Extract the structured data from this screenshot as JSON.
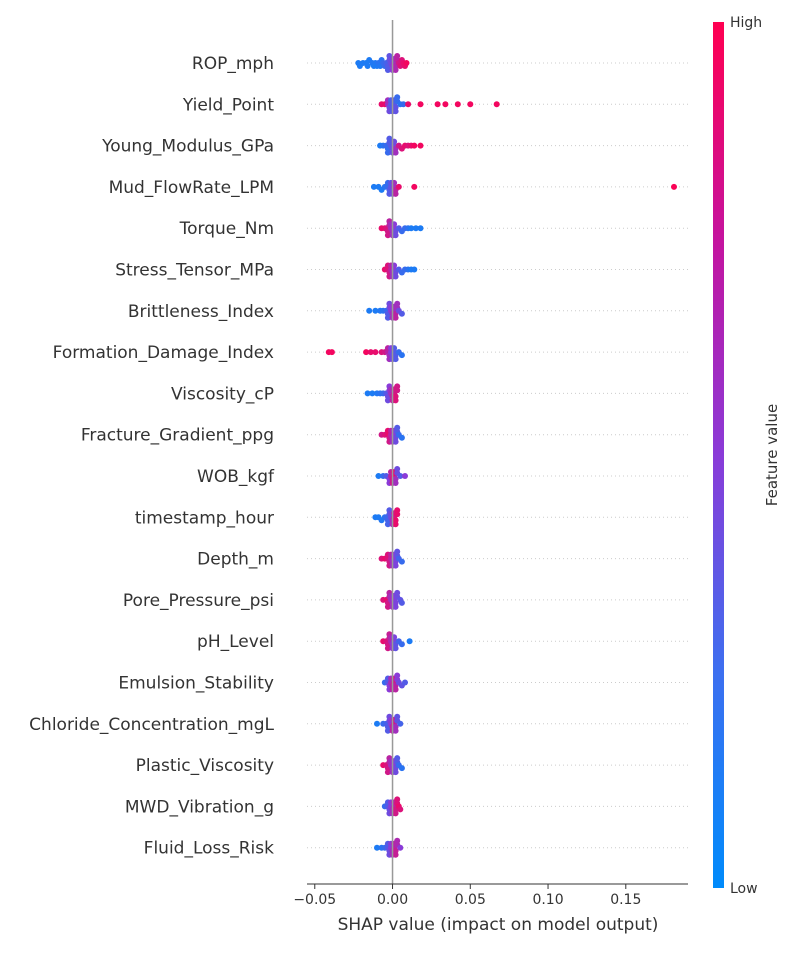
{
  "chart_data": {
    "type": "scatter",
    "xlabel": "SHAP value (impact on model output)",
    "xlim": [
      -0.055,
      0.19
    ],
    "xticks": [
      -0.05,
      0.0,
      0.05,
      0.1,
      0.15
    ],
    "xtick_labels": [
      "−0.05",
      "0.00",
      "0.05",
      "0.10",
      "0.15"
    ],
    "colorbar": {
      "label": "Feature value",
      "high_label": "High",
      "low_label": "Low",
      "low_color": "#008bfb",
      "high_color": "#ff0051"
    },
    "features": [
      {
        "name": "ROP_mph",
        "points": [
          [
            -0.022,
            0.1
          ],
          [
            -0.021,
            0.1
          ],
          [
            -0.019,
            0.1
          ],
          [
            -0.017,
            0.1
          ],
          [
            -0.016,
            0.1
          ],
          [
            -0.015,
            0.1
          ],
          [
            -0.013,
            0.12
          ],
          [
            -0.012,
            0.1
          ],
          [
            -0.011,
            0.12
          ],
          [
            -0.01,
            0.1
          ],
          [
            -0.009,
            0.15
          ],
          [
            -0.008,
            0.12
          ],
          [
            -0.007,
            0.15
          ],
          [
            -0.006,
            0.2
          ],
          [
            -0.005,
            0.2
          ],
          [
            -0.004,
            0.25
          ],
          [
            -0.003,
            0.3
          ],
          [
            -0.002,
            0.35
          ],
          [
            -0.001,
            0.4
          ],
          [
            0.0,
            0.5
          ],
          [
            0.001,
            0.6
          ],
          [
            0.002,
            0.65
          ],
          [
            0.003,
            0.7
          ],
          [
            0.004,
            0.8
          ],
          [
            0.005,
            0.85
          ],
          [
            0.006,
            0.85
          ],
          [
            0.007,
            0.9
          ],
          [
            0.008,
            0.9
          ],
          [
            0.009,
            0.95
          ]
        ]
      },
      {
        "name": "Yield_Point",
        "points": [
          [
            -0.007,
            0.9
          ],
          [
            -0.005,
            0.9
          ],
          [
            -0.003,
            0.6
          ],
          [
            -0.002,
            0.4
          ],
          [
            -0.001,
            0.3
          ],
          [
            0.0,
            0.3
          ],
          [
            0.001,
            0.3
          ],
          [
            0.002,
            0.35
          ],
          [
            0.003,
            0.2
          ],
          [
            0.005,
            0.15
          ],
          [
            0.007,
            0.2
          ],
          [
            0.01,
            0.9
          ],
          [
            0.018,
            0.95
          ],
          [
            0.029,
            0.95
          ],
          [
            0.034,
            0.95
          ],
          [
            0.042,
            0.95
          ],
          [
            0.05,
            0.95
          ],
          [
            0.067,
            0.95
          ]
        ]
      },
      {
        "name": "Young_Modulus_GPa",
        "points": [
          [
            -0.008,
            0.1
          ],
          [
            -0.006,
            0.15
          ],
          [
            -0.004,
            0.2
          ],
          [
            -0.003,
            0.2
          ],
          [
            -0.002,
            0.3
          ],
          [
            -0.001,
            0.3
          ],
          [
            0.0,
            0.35
          ],
          [
            0.001,
            0.4
          ],
          [
            0.002,
            0.6
          ],
          [
            0.004,
            0.8
          ],
          [
            0.006,
            0.85
          ],
          [
            0.008,
            0.9
          ],
          [
            0.01,
            0.85
          ],
          [
            0.012,
            0.9
          ],
          [
            0.014,
            0.95
          ],
          [
            0.018,
            0.95
          ]
        ]
      },
      {
        "name": "Mud_FlowRate_LPM",
        "points": [
          [
            -0.012,
            0.1
          ],
          [
            -0.009,
            0.1
          ],
          [
            -0.007,
            0.1
          ],
          [
            -0.005,
            0.15
          ],
          [
            -0.003,
            0.2
          ],
          [
            -0.002,
            0.3
          ],
          [
            -0.001,
            0.35
          ],
          [
            0.0,
            0.4
          ],
          [
            0.001,
            0.6
          ],
          [
            0.002,
            0.7
          ],
          [
            0.004,
            0.9
          ],
          [
            0.014,
            0.95
          ],
          [
            0.181,
            0.98
          ]
        ]
      },
      {
        "name": "Torque_Nm",
        "points": [
          [
            -0.007,
            0.9
          ],
          [
            -0.005,
            0.9
          ],
          [
            -0.004,
            0.85
          ],
          [
            -0.003,
            0.8
          ],
          [
            -0.002,
            0.7
          ],
          [
            -0.001,
            0.6
          ],
          [
            0.0,
            0.6
          ],
          [
            0.001,
            0.5
          ],
          [
            0.002,
            0.4
          ],
          [
            0.004,
            0.3
          ],
          [
            0.006,
            0.2
          ],
          [
            0.008,
            0.2
          ],
          [
            0.01,
            0.15
          ],
          [
            0.012,
            0.1
          ],
          [
            0.015,
            0.1
          ],
          [
            0.018,
            0.1
          ]
        ]
      },
      {
        "name": "Stress_Tensor_MPa",
        "points": [
          [
            -0.005,
            0.9
          ],
          [
            -0.003,
            0.85
          ],
          [
            -0.002,
            0.8
          ],
          [
            -0.001,
            0.7
          ],
          [
            0.0,
            0.6
          ],
          [
            0.001,
            0.5
          ],
          [
            0.002,
            0.4
          ],
          [
            0.004,
            0.3
          ],
          [
            0.006,
            0.2
          ],
          [
            0.008,
            0.2
          ],
          [
            0.01,
            0.15
          ],
          [
            0.012,
            0.1
          ],
          [
            0.014,
            0.1
          ]
        ]
      },
      {
        "name": "Brittleness_Index",
        "points": [
          [
            -0.015,
            0.1
          ],
          [
            -0.011,
            0.1
          ],
          [
            -0.008,
            0.12
          ],
          [
            -0.006,
            0.15
          ],
          [
            -0.004,
            0.2
          ],
          [
            -0.003,
            0.3
          ],
          [
            -0.002,
            0.4
          ],
          [
            -0.001,
            0.5
          ],
          [
            0.0,
            0.6
          ],
          [
            0.001,
            0.6
          ],
          [
            0.002,
            0.7
          ],
          [
            0.003,
            0.6
          ],
          [
            0.004,
            0.4
          ],
          [
            0.006,
            0.3
          ]
        ]
      },
      {
        "name": "Formation_Damage_Index",
        "points": [
          [
            -0.041,
            0.95
          ],
          [
            -0.039,
            0.95
          ],
          [
            -0.017,
            0.95
          ],
          [
            -0.014,
            0.9
          ],
          [
            -0.011,
            0.9
          ],
          [
            -0.007,
            0.85
          ],
          [
            -0.005,
            0.8
          ],
          [
            -0.003,
            0.7
          ],
          [
            -0.002,
            0.6
          ],
          [
            -0.001,
            0.5
          ],
          [
            0.0,
            0.4
          ],
          [
            0.001,
            0.3
          ],
          [
            0.002,
            0.3
          ],
          [
            0.004,
            0.2
          ],
          [
            0.006,
            0.15
          ]
        ]
      },
      {
        "name": "Viscosity_cP",
        "points": [
          [
            -0.016,
            0.1
          ],
          [
            -0.013,
            0.1
          ],
          [
            -0.01,
            0.12
          ],
          [
            -0.008,
            0.15
          ],
          [
            -0.006,
            0.2
          ],
          [
            -0.004,
            0.3
          ],
          [
            -0.003,
            0.4
          ],
          [
            -0.002,
            0.5
          ],
          [
            -0.001,
            0.6
          ],
          [
            0.0,
            0.7
          ],
          [
            0.001,
            0.8
          ],
          [
            0.002,
            0.85
          ],
          [
            0.003,
            0.8
          ]
        ]
      },
      {
        "name": "Fracture_Gradient_ppg",
        "points": [
          [
            -0.007,
            0.8
          ],
          [
            -0.005,
            0.85
          ],
          [
            -0.003,
            0.9
          ],
          [
            -0.002,
            0.8
          ],
          [
            -0.001,
            0.7
          ],
          [
            0.0,
            0.6
          ],
          [
            0.001,
            0.5
          ],
          [
            0.002,
            0.4
          ],
          [
            0.003,
            0.3
          ],
          [
            0.004,
            0.2
          ],
          [
            0.006,
            0.15
          ]
        ]
      },
      {
        "name": "WOB_kgf",
        "points": [
          [
            -0.009,
            0.1
          ],
          [
            -0.006,
            0.2
          ],
          [
            -0.004,
            0.3
          ],
          [
            -0.002,
            0.5
          ],
          [
            -0.001,
            0.7
          ],
          [
            0.0,
            0.8
          ],
          [
            0.001,
            0.9
          ],
          [
            0.002,
            0.6
          ],
          [
            0.003,
            0.4
          ],
          [
            0.005,
            0.3
          ],
          [
            0.008,
            0.5
          ]
        ]
      },
      {
        "name": "timestamp_hour",
        "points": [
          [
            -0.011,
            0.1
          ],
          [
            -0.009,
            0.1
          ],
          [
            -0.007,
            0.12
          ],
          [
            -0.005,
            0.15
          ],
          [
            -0.004,
            0.2
          ],
          [
            -0.003,
            0.25
          ],
          [
            -0.002,
            0.3
          ],
          [
            -0.001,
            0.4
          ],
          [
            0.0,
            0.6
          ],
          [
            0.001,
            0.8
          ],
          [
            0.002,
            0.9
          ],
          [
            0.003,
            0.9
          ]
        ]
      },
      {
        "name": "Depth_m",
        "points": [
          [
            -0.007,
            0.85
          ],
          [
            -0.005,
            0.9
          ],
          [
            -0.003,
            0.85
          ],
          [
            -0.002,
            0.8
          ],
          [
            -0.001,
            0.7
          ],
          [
            0.0,
            0.6
          ],
          [
            0.001,
            0.5
          ],
          [
            0.002,
            0.45
          ],
          [
            0.003,
            0.35
          ],
          [
            0.004,
            0.25
          ],
          [
            0.006,
            0.2
          ]
        ]
      },
      {
        "name": "Pore_Pressure_psi",
        "points": [
          [
            -0.006,
            0.85
          ],
          [
            -0.004,
            0.9
          ],
          [
            -0.003,
            0.8
          ],
          [
            -0.002,
            0.7
          ],
          [
            -0.001,
            0.6
          ],
          [
            0.0,
            0.6
          ],
          [
            0.001,
            0.5
          ],
          [
            0.002,
            0.45
          ],
          [
            0.003,
            0.4
          ],
          [
            0.005,
            0.35
          ],
          [
            0.006,
            0.3
          ]
        ]
      },
      {
        "name": "pH_Level",
        "points": [
          [
            -0.006,
            0.9
          ],
          [
            -0.004,
            0.85
          ],
          [
            -0.003,
            0.8
          ],
          [
            -0.002,
            0.75
          ],
          [
            -0.001,
            0.65
          ],
          [
            0.0,
            0.55
          ],
          [
            0.001,
            0.45
          ],
          [
            0.002,
            0.35
          ],
          [
            0.004,
            0.25
          ],
          [
            0.006,
            0.2
          ],
          [
            0.011,
            0.1
          ]
        ]
      },
      {
        "name": "Emulsion_Stability",
        "points": [
          [
            -0.005,
            0.2
          ],
          [
            -0.003,
            0.3
          ],
          [
            -0.002,
            0.5
          ],
          [
            -0.001,
            0.6
          ],
          [
            0.0,
            0.7
          ],
          [
            0.001,
            0.8
          ],
          [
            0.002,
            0.7
          ],
          [
            0.003,
            0.5
          ],
          [
            0.004,
            0.4
          ],
          [
            0.006,
            0.35
          ],
          [
            0.008,
            0.3
          ]
        ]
      },
      {
        "name": "Chloride_Concentration_mgL",
        "points": [
          [
            -0.01,
            0.1
          ],
          [
            -0.006,
            0.2
          ],
          [
            -0.004,
            0.25
          ],
          [
            -0.003,
            0.3
          ],
          [
            -0.002,
            0.4
          ],
          [
            -0.001,
            0.5
          ],
          [
            0.0,
            0.7
          ],
          [
            0.001,
            0.8
          ],
          [
            0.002,
            0.6
          ],
          [
            0.003,
            0.35
          ],
          [
            0.005,
            0.25
          ]
        ]
      },
      {
        "name": "Plastic_Viscosity",
        "points": [
          [
            -0.006,
            0.9
          ],
          [
            -0.004,
            0.85
          ],
          [
            -0.003,
            0.8
          ],
          [
            -0.002,
            0.7
          ],
          [
            -0.001,
            0.6
          ],
          [
            0.0,
            0.6
          ],
          [
            0.001,
            0.5
          ],
          [
            0.002,
            0.4
          ],
          [
            0.003,
            0.3
          ],
          [
            0.004,
            0.2
          ],
          [
            0.006,
            0.15
          ]
        ]
      },
      {
        "name": "MWD_Vibration_g",
        "points": [
          [
            -0.005,
            0.2
          ],
          [
            -0.003,
            0.3
          ],
          [
            -0.002,
            0.4
          ],
          [
            -0.001,
            0.5
          ],
          [
            0.0,
            0.6
          ],
          [
            0.001,
            0.7
          ],
          [
            0.002,
            0.8
          ],
          [
            0.003,
            0.85
          ],
          [
            0.004,
            0.9
          ],
          [
            0.005,
            0.85
          ]
        ]
      },
      {
        "name": "Fluid_Loss_Risk",
        "points": [
          [
            -0.01,
            0.1
          ],
          [
            -0.007,
            0.15
          ],
          [
            -0.005,
            0.2
          ],
          [
            -0.003,
            0.3
          ],
          [
            -0.002,
            0.4
          ],
          [
            -0.001,
            0.5
          ],
          [
            0.0,
            0.6
          ],
          [
            0.001,
            0.7
          ],
          [
            0.002,
            0.75
          ],
          [
            0.003,
            0.65
          ],
          [
            0.005,
            0.5
          ]
        ]
      }
    ]
  }
}
